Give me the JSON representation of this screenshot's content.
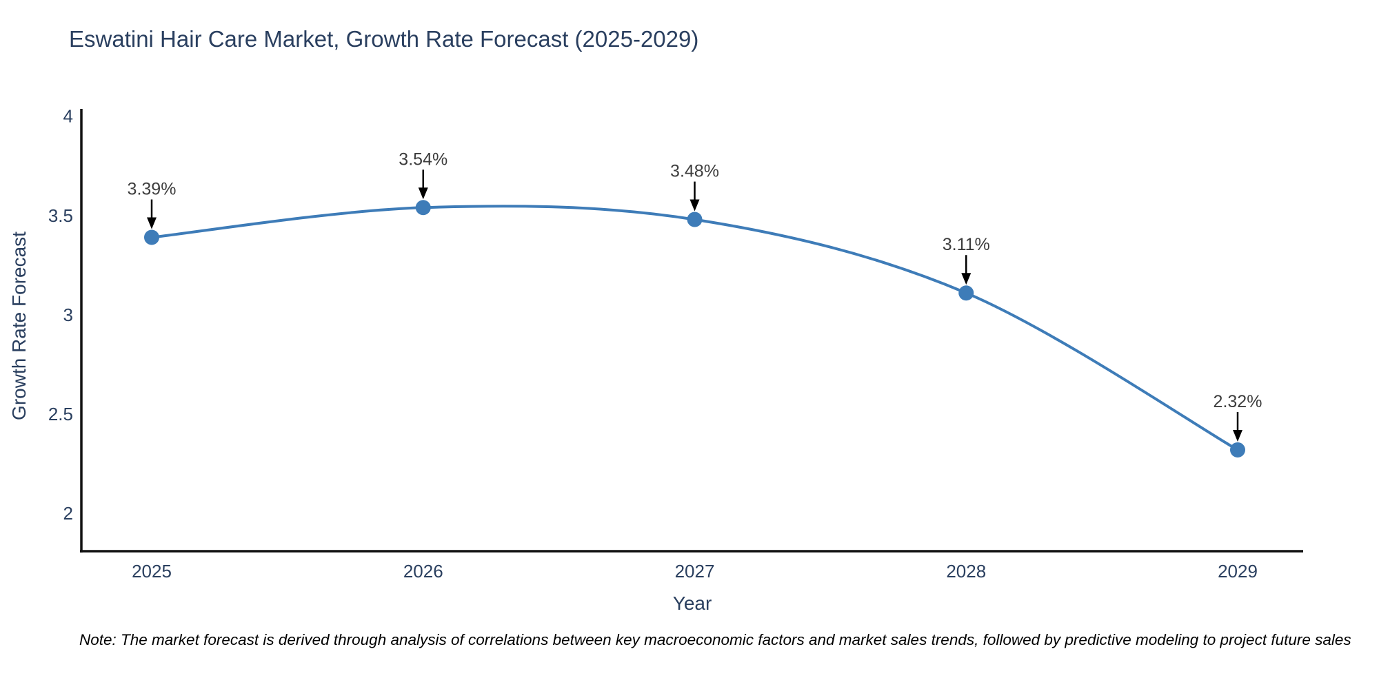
{
  "title": "Eswatini Hair Care Market, Growth Rate Forecast (2025-2029)",
  "note": "Note: The market forecast is derived through analysis of correlations between key macroeconomic factors and market sales trends, followed by predictive modeling to project future sales",
  "chart_data": {
    "type": "line",
    "title": "Eswatini Hair Care Market, Growth Rate Forecast (2025-2029)",
    "xlabel": "Year",
    "ylabel": "Growth Rate Forecast",
    "categories": [
      "2025",
      "2026",
      "2027",
      "2028",
      "2029"
    ],
    "values": [
      3.39,
      3.54,
      3.48,
      3.11,
      2.32
    ],
    "point_labels": [
      "3.39%",
      "3.54%",
      "3.48%",
      "3.11%",
      "2.32%"
    ],
    "ytick_values": [
      2,
      2.5,
      3,
      3.5,
      4
    ],
    "ytick_labels": [
      "2",
      "2.5",
      "3",
      "3.5",
      "4"
    ],
    "ylim": [
      1.81,
      4.03
    ],
    "grid": false,
    "legend": false,
    "line_shape": "spline",
    "marker": "circle",
    "colors": {
      "line": "#3e7cb8",
      "marker": "#3e7cb8",
      "axis_line": "#111111",
      "tick_text": "#2a3f5f",
      "annotation_text": "#3d3d3d",
      "annotation_arrow": "#000000"
    }
  }
}
